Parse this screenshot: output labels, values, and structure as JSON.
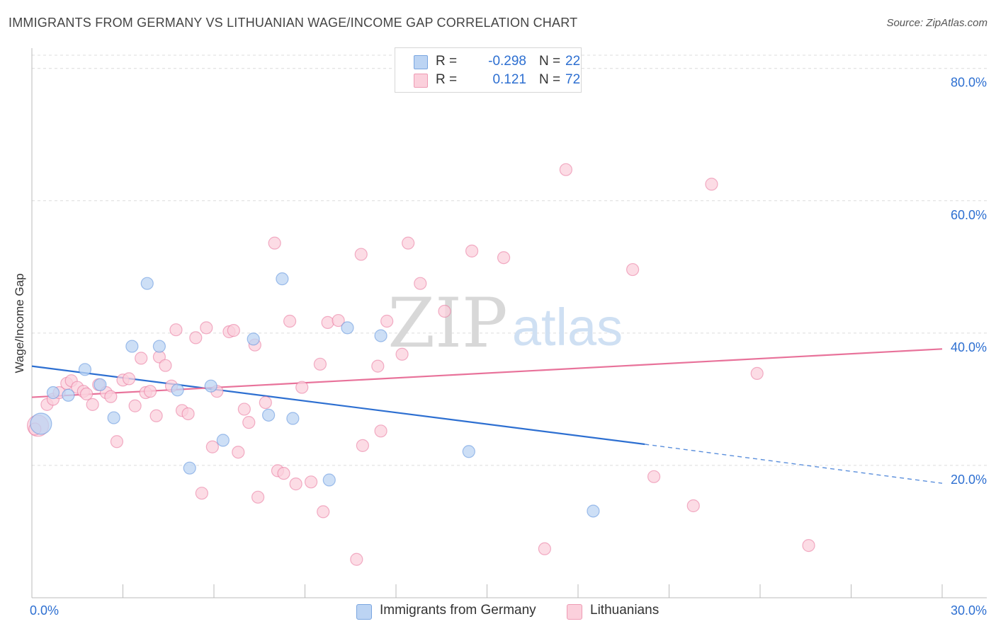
{
  "title": "IMMIGRANTS FROM GERMANY VS LITHUANIAN WAGE/INCOME GAP CORRELATION CHART",
  "source": "Source: ZipAtlas.com",
  "watermark": {
    "zip": "ZIP",
    "atlas": "atlas"
  },
  "legend": {
    "r_label": "R =",
    "n_label": "N =",
    "rows": [
      {
        "r": "-0.298",
        "n": "22",
        "fill": "#bcd4f3",
        "stroke": "#7aa6e0"
      },
      {
        "r": "0.121",
        "n": "72",
        "fill": "#fbd0dc",
        "stroke": "#ee9bb4"
      }
    ]
  },
  "bottom_legend": [
    {
      "label": "Immigrants from Germany",
      "fill": "#bcd4f3",
      "stroke": "#7aa6e0"
    },
    {
      "label": "Lithuanians",
      "fill": "#fbd0dc",
      "stroke": "#ee9bb4"
    }
  ],
  "chart_data": {
    "type": "scatter",
    "title": "IMMIGRANTS FROM GERMANY VS LITHUANIAN WAGE/INCOME GAP CORRELATION CHART",
    "xlabel": "",
    "ylabel": "Wage/Income Gap",
    "xlim": [
      0,
      30
    ],
    "ylim": [
      0,
      82
    ],
    "x_tick_labels": [
      "0.0%",
      "30.0%"
    ],
    "y_ticks": [
      20,
      40,
      60,
      80
    ],
    "y_tick_labels": [
      "20.0%",
      "40.0%",
      "60.0%",
      "80.0%"
    ],
    "grid": true,
    "series": [
      {
        "name": "Immigrants from Germany",
        "color": "#5b8fdc",
        "fill": "#bcd4f3",
        "r": -0.298,
        "n": 22,
        "trend": {
          "x0": 0,
          "y0": 35.0,
          "x1": 20.2,
          "y1": 23.2,
          "dash_to_x": 30,
          "dash_to_y": 17.3
        },
        "points": [
          [
            0.3,
            26.3
          ],
          [
            0.7,
            31.0
          ],
          [
            1.2,
            30.6
          ],
          [
            1.75,
            34.5
          ],
          [
            2.25,
            32.2
          ],
          [
            2.7,
            27.2
          ],
          [
            3.3,
            38.0
          ],
          [
            3.8,
            47.5
          ],
          [
            4.2,
            38.0
          ],
          [
            4.8,
            31.4
          ],
          [
            5.2,
            19.6
          ],
          [
            5.9,
            32.0
          ],
          [
            6.3,
            23.8
          ],
          [
            7.3,
            39.1
          ],
          [
            7.8,
            27.6
          ],
          [
            8.25,
            48.2
          ],
          [
            8.6,
            27.1
          ],
          [
            9.8,
            17.8
          ],
          [
            10.4,
            40.8
          ],
          [
            11.5,
            39.6
          ],
          [
            14.4,
            22.1
          ],
          [
            18.5,
            13.1
          ]
        ]
      },
      {
        "name": "Lithuanians",
        "color": "#e8729a",
        "fill": "#fbd0dc",
        "r": 0.121,
        "n": 72,
        "trend": {
          "x0": 0,
          "y0": 30.3,
          "x1": 30,
          "y1": 37.6
        },
        "points": [
          [
            0.2,
            26.0
          ],
          [
            0.5,
            29.2
          ],
          [
            0.7,
            30.0
          ],
          [
            0.9,
            31.0
          ],
          [
            1.15,
            32.4
          ],
          [
            1.3,
            32.8
          ],
          [
            1.5,
            31.8
          ],
          [
            1.7,
            31.2
          ],
          [
            1.8,
            30.8
          ],
          [
            2.0,
            29.2
          ],
          [
            2.2,
            32.2
          ],
          [
            2.45,
            31.0
          ],
          [
            2.6,
            30.4
          ],
          [
            2.8,
            23.6
          ],
          [
            3.0,
            32.9
          ],
          [
            3.2,
            33.1
          ],
          [
            3.4,
            29.0
          ],
          [
            3.6,
            36.2
          ],
          [
            3.75,
            31.0
          ],
          [
            3.9,
            31.2
          ],
          [
            4.1,
            27.5
          ],
          [
            4.2,
            36.4
          ],
          [
            4.4,
            35.1
          ],
          [
            4.6,
            32.0
          ],
          [
            4.75,
            40.5
          ],
          [
            4.95,
            28.3
          ],
          [
            5.15,
            27.8
          ],
          [
            5.4,
            39.3
          ],
          [
            5.6,
            15.8
          ],
          [
            5.75,
            40.8
          ],
          [
            5.95,
            22.8
          ],
          [
            6.1,
            31.2
          ],
          [
            6.5,
            40.2
          ],
          [
            6.65,
            40.4
          ],
          [
            6.8,
            22.0
          ],
          [
            7.0,
            28.5
          ],
          [
            7.15,
            26.5
          ],
          [
            7.35,
            38.2
          ],
          [
            7.45,
            15.2
          ],
          [
            7.7,
            29.5
          ],
          [
            8.0,
            53.6
          ],
          [
            8.1,
            19.2
          ],
          [
            8.3,
            18.8
          ],
          [
            8.5,
            41.8
          ],
          [
            8.7,
            17.2
          ],
          [
            8.9,
            31.8
          ],
          [
            9.2,
            17.5
          ],
          [
            9.5,
            35.3
          ],
          [
            9.6,
            13.0
          ],
          [
            9.75,
            41.6
          ],
          [
            10.1,
            41.9
          ],
          [
            10.7,
            5.8
          ],
          [
            10.85,
            51.9
          ],
          [
            10.9,
            23.0
          ],
          [
            11.4,
            35.0
          ],
          [
            11.5,
            25.2
          ],
          [
            11.7,
            41.8
          ],
          [
            12.2,
            36.8
          ],
          [
            12.4,
            53.6
          ],
          [
            12.8,
            47.5
          ],
          [
            13.6,
            43.3
          ],
          [
            14.5,
            52.4
          ],
          [
            15.55,
            51.4
          ],
          [
            16.9,
            7.4
          ],
          [
            17.6,
            64.7
          ],
          [
            19.8,
            49.6
          ],
          [
            20.5,
            18.3
          ],
          [
            21.8,
            13.9
          ],
          [
            22.4,
            62.5
          ],
          [
            23.9,
            33.9
          ],
          [
            25.6,
            7.9
          ],
          [
            0.1,
            25.5
          ]
        ]
      }
    ]
  }
}
